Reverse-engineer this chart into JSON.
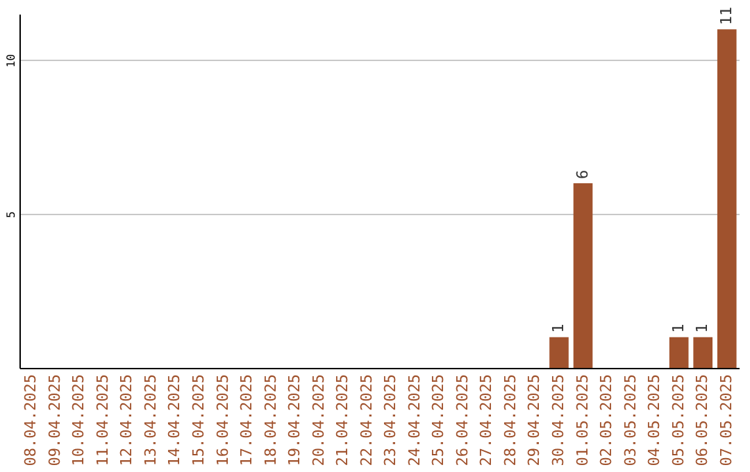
{
  "chart_data": {
    "type": "bar",
    "categories": [
      "08.04.2025",
      "09.04.2025",
      "10.04.2025",
      "11.04.2025",
      "12.04.2025",
      "13.04.2025",
      "14.04.2025",
      "15.04.2025",
      "16.04.2025",
      "17.04.2025",
      "18.04.2025",
      "19.04.2025",
      "20.04.2025",
      "21.04.2025",
      "22.04.2025",
      "23.04.2025",
      "24.04.2025",
      "25.04.2025",
      "26.04.2025",
      "27.04.2025",
      "28.04.2025",
      "29.04.2025",
      "30.04.2025",
      "01.05.2025",
      "02.05.2025",
      "03.05.2025",
      "04.05.2025",
      "05.05.2025",
      "06.05.2025",
      "07.05.2025"
    ],
    "values": [
      0,
      0,
      0,
      0,
      0,
      0,
      0,
      0,
      0,
      0,
      0,
      0,
      0,
      0,
      0,
      0,
      0,
      0,
      0,
      0,
      0,
      0,
      1,
      6,
      0,
      0,
      0,
      1,
      1,
      11
    ],
    "value_labels": [
      null,
      null,
      null,
      null,
      null,
      null,
      null,
      null,
      null,
      null,
      null,
      null,
      null,
      null,
      null,
      null,
      null,
      null,
      null,
      null,
      null,
      null,
      "1",
      "6",
      null,
      null,
      null,
      "1",
      "1",
      "11"
    ],
    "color": "#a0522d",
    "ylim": [
      0,
      11.5
    ],
    "yticks": [
      5,
      10
    ],
    "grid": "y"
  }
}
